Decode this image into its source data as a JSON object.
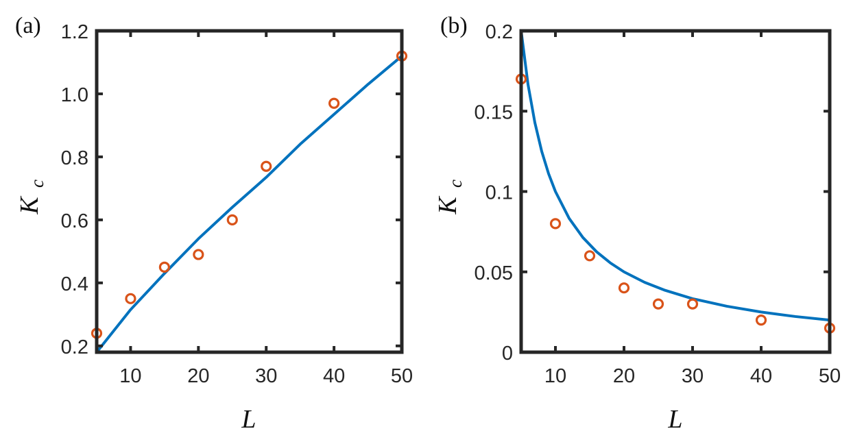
{
  "chart_data": [
    {
      "panel_label": "(a)",
      "type": "scatter",
      "xlabel": "L",
      "ylabel_main": "K",
      "ylabel_sub": "c",
      "xlim": [
        5,
        50
      ],
      "ylim": [
        0.18,
        1.2
      ],
      "xticks": [
        10,
        20,
        30,
        40,
        50
      ],
      "xtick_labels": [
        "10",
        "20",
        "30",
        "40",
        "50"
      ],
      "yticks": [
        0.2,
        0.4,
        0.6,
        0.8,
        1.0,
        1.2
      ],
      "ytick_labels": [
        "0.2",
        "0.4",
        "0.6",
        "0.8",
        "1.0",
        "1.2"
      ],
      "scale": "linear",
      "grid": false,
      "series": [
        {
          "kind": "points",
          "color": "#D95319",
          "marker": "open-circle",
          "x": [
            5,
            10,
            15,
            20,
            25,
            30,
            40,
            50
          ],
          "y": [
            0.24,
            0.35,
            0.45,
            0.49,
            0.6,
            0.77,
            0.97,
            1.12
          ]
        },
        {
          "kind": "line",
          "color": "#0072BD",
          "x": [
            5,
            10,
            15,
            20,
            25,
            30,
            35,
            40,
            45,
            50
          ],
          "y": [
            0.18,
            0.315,
            0.43,
            0.54,
            0.64,
            0.735,
            0.84,
            0.935,
            1.03,
            1.12
          ]
        }
      ]
    },
    {
      "panel_label": "(b)",
      "type": "scatter",
      "xlabel": "L",
      "ylabel_main": "K",
      "ylabel_sub": "c",
      "xlim": [
        5,
        50
      ],
      "ylim": [
        0,
        0.2
      ],
      "xticks": [
        10,
        20,
        30,
        40,
        50
      ],
      "xtick_labels": [
        "10",
        "20",
        "30",
        "40",
        "50"
      ],
      "yticks": [
        0,
        0.05,
        0.1,
        0.15,
        0.2
      ],
      "ytick_labels": [
        "0",
        "0.05",
        "0.1",
        "0.15",
        "0.2"
      ],
      "scale": "linear",
      "grid": false,
      "series": [
        {
          "kind": "points",
          "color": "#D95319",
          "marker": "open-circle",
          "x": [
            5,
            10,
            15,
            20,
            25,
            30,
            40,
            50
          ],
          "y": [
            0.17,
            0.08,
            0.06,
            0.04,
            0.03,
            0.03,
            0.02,
            0.015
          ]
        },
        {
          "kind": "line",
          "color": "#0072BD",
          "x": [
            5,
            6,
            7,
            8,
            9,
            10,
            12,
            14,
            16,
            18,
            20,
            23,
            26,
            30,
            35,
            40,
            45,
            50
          ],
          "y": [
            0.2,
            0.1667,
            0.1429,
            0.125,
            0.1111,
            0.1,
            0.0833,
            0.0714,
            0.0625,
            0.0556,
            0.05,
            0.0435,
            0.0385,
            0.0333,
            0.0286,
            0.025,
            0.0222,
            0.02
          ]
        }
      ]
    }
  ]
}
